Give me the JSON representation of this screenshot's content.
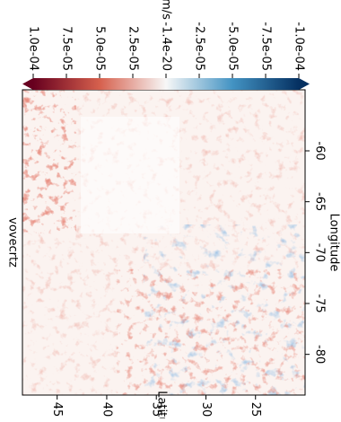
{
  "chart_data": {
    "type": "heatmap",
    "title": "vovecrtz",
    "xlabel": "Longitude",
    "ylabel": "Latitude",
    "xlim": [
      -84,
      -54
    ],
    "xticks": [
      -60,
      -65,
      -70,
      -75,
      -80
    ],
    "ylim": [
      20,
      48.5
    ],
    "yticks": [
      45,
      40,
      35,
      30,
      25
    ],
    "colorbar_label": "m/s",
    "clim": [
      -0.0001,
      0.0001
    ],
    "colorbar_ticks": [
      {
        "value": 0.0001,
        "label": "1.0e-04"
      },
      {
        "value": 7.5e-05,
        "label": "7.5e-05"
      },
      {
        "value": 5e-05,
        "label": "5.0e-05"
      },
      {
        "value": 2.5e-05,
        "label": "2.5e-05"
      },
      {
        "value": -1.4e-20,
        "label": "-1.4e-20"
      },
      {
        "value": -2.5e-05,
        "label": "-2.5e-05"
      },
      {
        "value": -5e-05,
        "label": "-5.0e-05"
      },
      {
        "value": -7.5e-05,
        "label": "-7.5e-05"
      },
      {
        "value": -0.0001,
        "label": "-1.0e-04"
      }
    ],
    "colormap": [
      "#67001f",
      "#d6604d",
      "#f7f7f7",
      "#4393c3",
      "#053061"
    ]
  }
}
